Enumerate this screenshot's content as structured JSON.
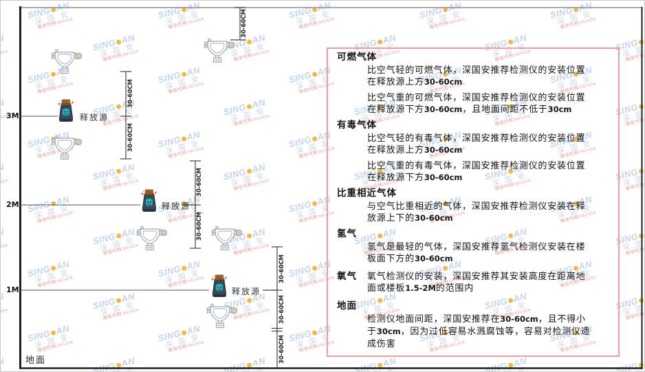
{
  "diagram": {
    "height_labels": [
      "3M",
      "2M",
      "1M"
    ],
    "ground_label": "地面",
    "release_source_label": "释放源",
    "dim_label": "30-60CM"
  },
  "panel": {
    "border_color": "#f29b97",
    "sections": [
      {
        "title": "可燃气体",
        "paragraphs": [
          "比空气轻的可燃气体，深国安推荐检测仪的安装位置在释放源上方30-60cm",
          "比空气重的可燃气体，深国安推荐检测仪的安装位置在释放源下方30-60cm，且地面间距不低于30cm"
        ]
      },
      {
        "title": "有毒气体",
        "paragraphs": [
          "比空气轻的有毒气体，深国安推荐检测仪的安装位置在释放源上方30-60cm",
          "比空气重的有毒气体，深国安推荐检测仪的安装位置在释放源下方30-60cm"
        ]
      },
      {
        "title": "比重相近气体",
        "paragraphs": [
          "与空气比重相近的气体，深国安推荐检测仪安装在释放源上下的30-60cm"
        ]
      },
      {
        "title": "氢气",
        "paragraphs": [
          "氢气是最轻的气体，深国安推荐氢气检测仪安装在楼板面下方的30-60cm"
        ]
      },
      {
        "title": "氧气",
        "paragraphs": [
          "氧气检测仪的安装，深国安推荐其安装高度在距离地面或楼板1.5-2M的范围内"
        ]
      },
      {
        "title": "地面",
        "paragraphs": [
          "检测仪地面间距，深国安推荐在30-60cm，且不得小于30cm，因为过低容易水溅腐蚀等，容易对检测仪造成伤害"
        ]
      }
    ]
  },
  "watermark": {
    "brand_left": "SING",
    "brand_right": "AN",
    "cn": "深 国 安",
    "agent_line": "微信代购:661434"
  }
}
